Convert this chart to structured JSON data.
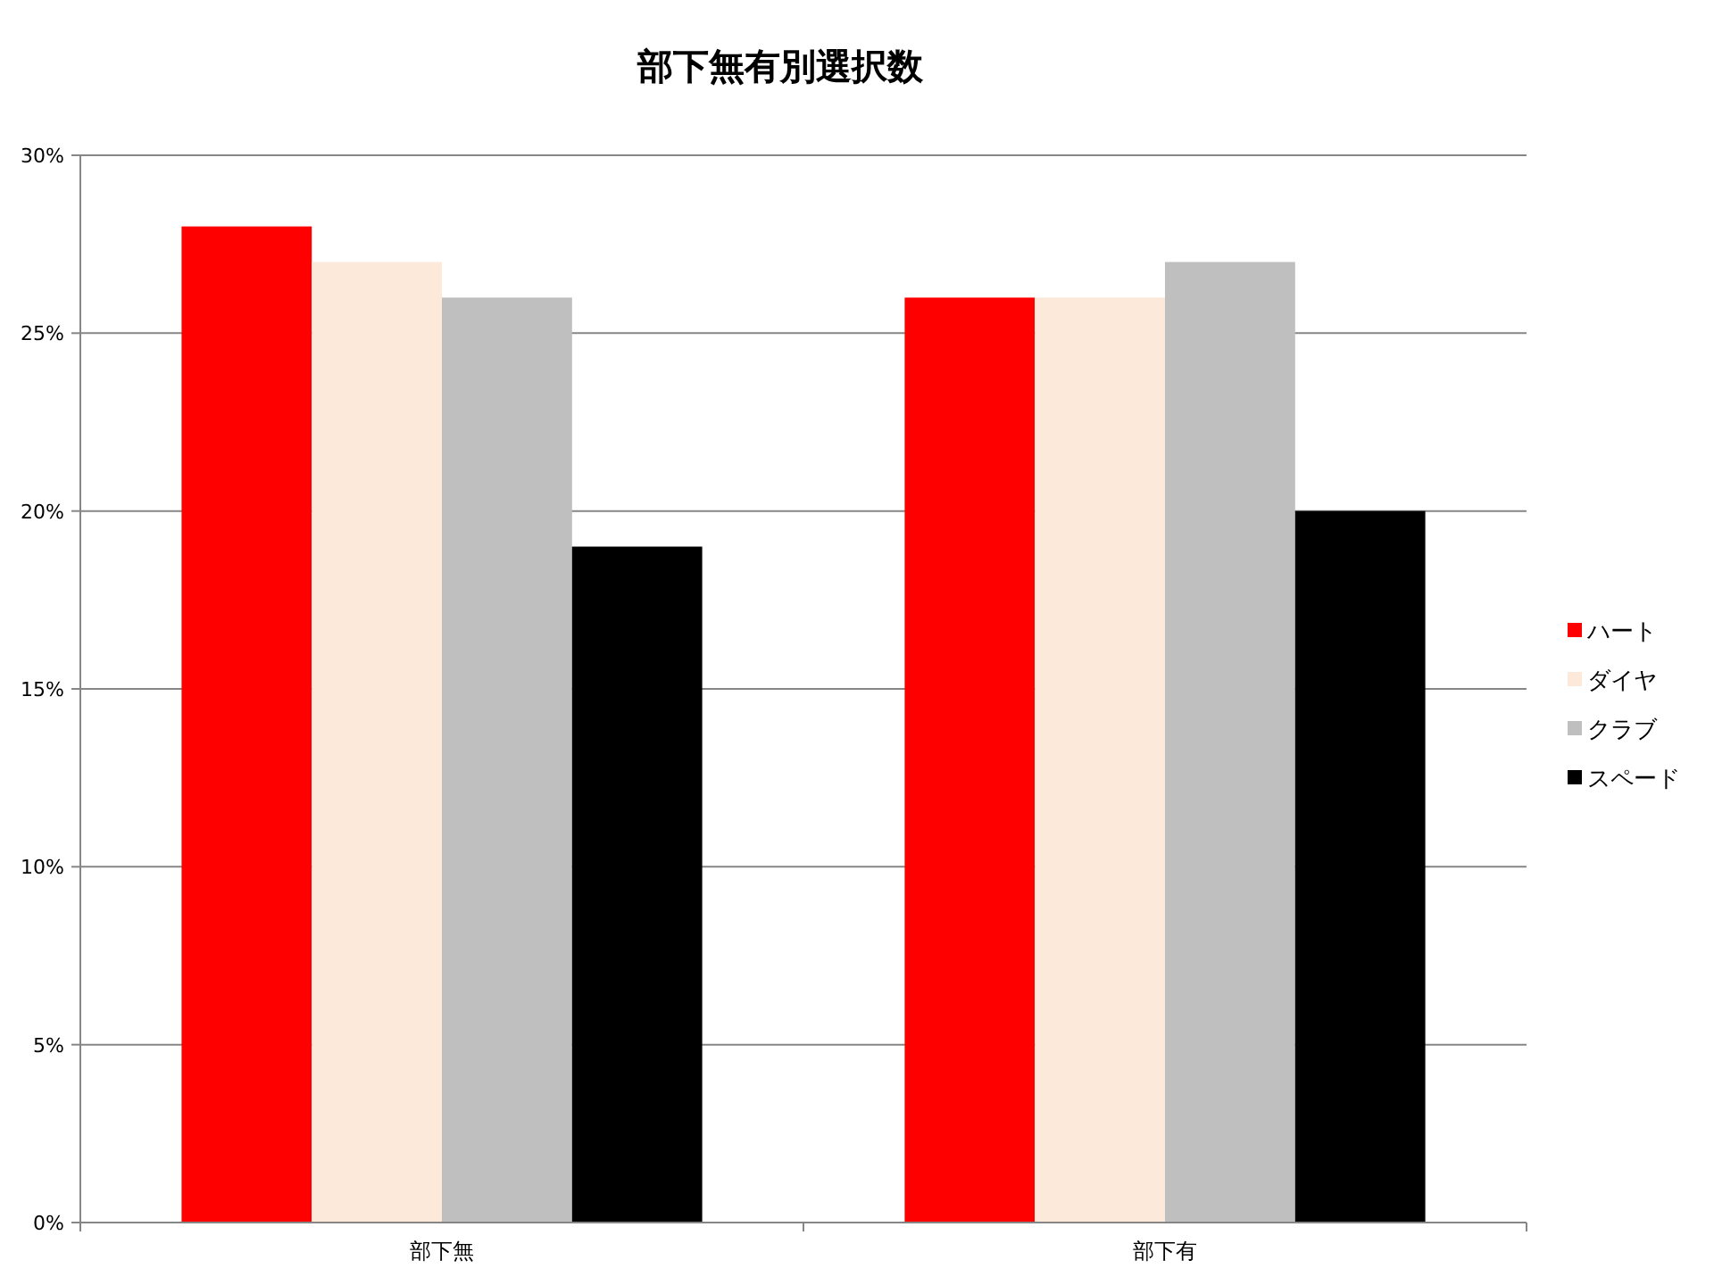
{
  "chart_data": {
    "type": "bar",
    "title": "部下無有別選択数",
    "categories": [
      "部下無",
      "部下有"
    ],
    "series": [
      {
        "name": "ハート",
        "color": "#ff0000",
        "values": [
          28,
          26
        ]
      },
      {
        "name": "ダイヤ",
        "color": "#fde9d9",
        "values": [
          27,
          26
        ]
      },
      {
        "name": "クラブ",
        "color": "#bfbfbf",
        "values": [
          26,
          27
        ]
      },
      {
        "name": "スペード",
        "color": "#000000",
        "values": [
          19,
          20
        ]
      }
    ],
    "ylim": [
      0,
      30
    ],
    "yticks": [
      {
        "value": 0,
        "label": "0%"
      },
      {
        "value": 5,
        "label": "5%"
      },
      {
        "value": 10,
        "label": "10%"
      },
      {
        "value": 15,
        "label": "15%"
      },
      {
        "value": 20,
        "label": "20%"
      },
      {
        "value": 25,
        "label": "25%"
      },
      {
        "value": 30,
        "label": "30%"
      }
    ],
    "grid": "y",
    "legend": "right"
  }
}
